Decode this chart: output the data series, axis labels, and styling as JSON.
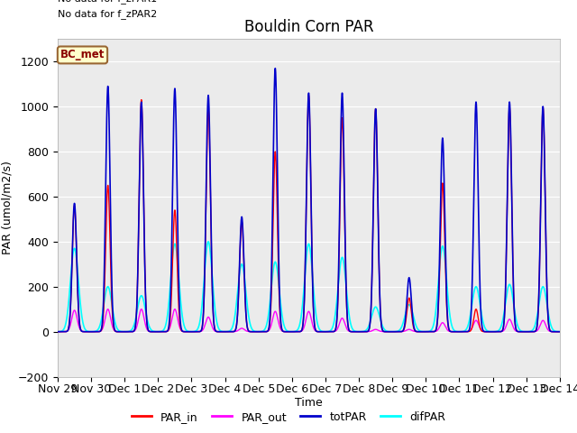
{
  "title": "Bouldin Corn PAR",
  "ylabel": "PAR (umol/m2/s)",
  "xlabel": "Time",
  "no_data_text": [
    "No data for f_zPAR1",
    "No data for f_zPAR2"
  ],
  "legend_label": "BC_met",
  "legend_bg": "#FFFFCC",
  "legend_border": "#996633",
  "ylim": [
    -200,
    1300
  ],
  "yticks": [
    -200,
    0,
    200,
    400,
    600,
    800,
    1000,
    1200
  ],
  "plot_bg": "#EBEBEB",
  "line_colors": {
    "PAR_in": "#FF0000",
    "PAR_out": "#FF00FF",
    "totPAR": "#0000CC",
    "difPAR": "#00FFFF"
  },
  "line_widths": {
    "PAR_in": 1.0,
    "PAR_out": 1.0,
    "totPAR": 1.2,
    "difPAR": 1.2
  },
  "xtick_labels": [
    "Nov 29",
    "Nov 30",
    "Dec 1",
    "Dec 2",
    "Dec 3",
    "Dec 4",
    "Dec 5",
    "Dec 6",
    "Dec 7",
    "Dec 8",
    "Dec 9",
    "Dec 10",
    "Dec 11",
    "Dec 12",
    "Dec 13",
    "Dec 14"
  ],
  "day_peaks": {
    "totPAR": [
      570,
      1090,
      1020,
      1080,
      1050,
      510,
      1170,
      1060,
      1060,
      990,
      240,
      860,
      1020,
      1020,
      1000
    ],
    "PAR_in": [
      560,
      650,
      1030,
      540,
      990,
      490,
      800,
      1050,
      950,
      990,
      150,
      660,
      100,
      1000,
      995
    ],
    "PAR_out": [
      95,
      100,
      100,
      100,
      65,
      15,
      90,
      90,
      60,
      10,
      10,
      40,
      50,
      55,
      50
    ],
    "difPAR": [
      370,
      200,
      160,
      390,
      400,
      300,
      310,
      390,
      330,
      110,
      120,
      380,
      200,
      210,
      200
    ]
  },
  "peak_widths": {
    "totPAR": 0.065,
    "PAR_in": 0.065,
    "PAR_out": 0.08,
    "difPAR": 0.12
  },
  "n_days": 15
}
